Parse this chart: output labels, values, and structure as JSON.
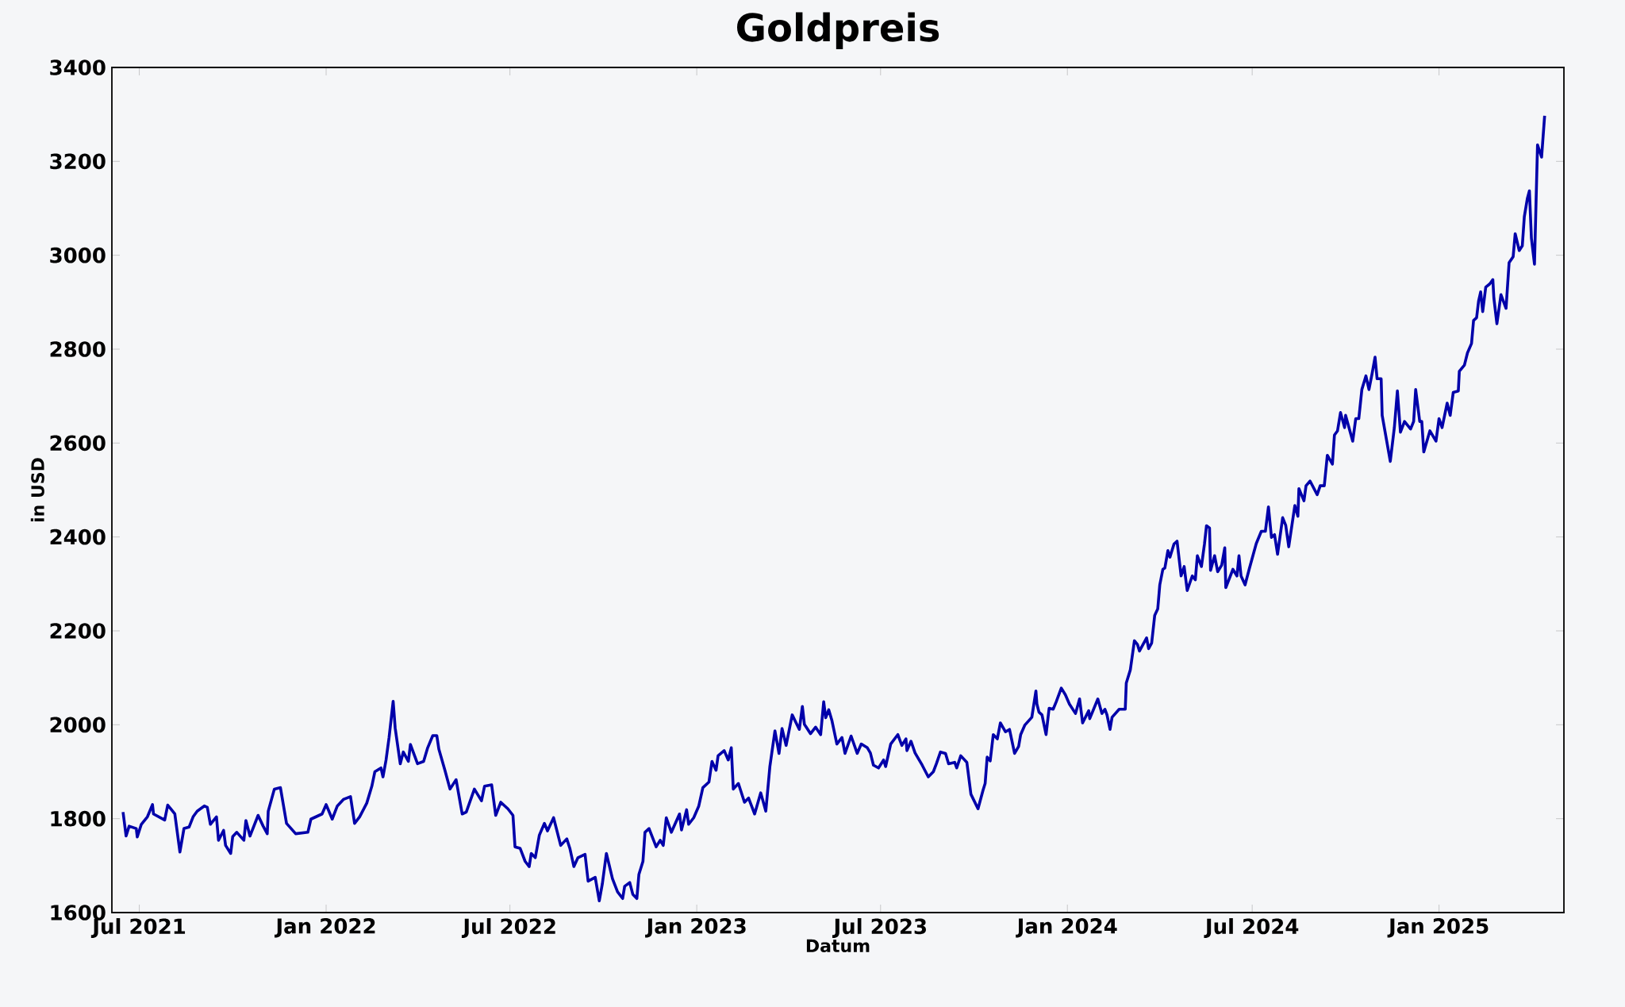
{
  "chart_data": {
    "type": "line",
    "title": "Goldpreis",
    "xlabel": "Datum",
    "ylabel": "in USD",
    "xlim": [
      "2021-06-04",
      "2025-05-04"
    ],
    "ylim": [
      1600,
      3400
    ],
    "xticks": [
      {
        "value": "2021-07-01",
        "label": "Jul 2021"
      },
      {
        "value": "2022-01-01",
        "label": "Jan 2022"
      },
      {
        "value": "2022-07-01",
        "label": "Jul 2022"
      },
      {
        "value": "2023-01-01",
        "label": "Jan 2023"
      },
      {
        "value": "2023-07-01",
        "label": "Jul 2023"
      },
      {
        "value": "2024-01-01",
        "label": "Jan 2024"
      },
      {
        "value": "2024-07-01",
        "label": "Jul 2024"
      },
      {
        "value": "2025-01-01",
        "label": "Jan 2025"
      }
    ],
    "yticks": [
      1600,
      1800,
      2000,
      2200,
      2400,
      2600,
      2800,
      3000,
      3200,
      3400
    ],
    "line_style": "solid",
    "series": [
      {
        "color": "#0000aa",
        "x": [
          "2021-06-15",
          "2021-06-18",
          "2021-06-21",
          "2021-06-28",
          "2021-06-29",
          "2021-07-03",
          "2021-07-09",
          "2021-07-14",
          "2021-07-15",
          "2021-07-26",
          "2021-07-29",
          "2021-08-05",
          "2021-08-10",
          "2021-08-14",
          "2021-08-19",
          "2021-08-23",
          "2021-08-27",
          "2021-09-03",
          "2021-09-06",
          "2021-09-09",
          "2021-09-15",
          "2021-09-17",
          "2021-09-22",
          "2021-09-24",
          "2021-09-29",
          "2021-10-01",
          "2021-10-05",
          "2021-10-12",
          "2021-10-14",
          "2021-10-18",
          "2021-10-26",
          "2021-10-31",
          "2021-11-04",
          "2021-11-05",
          "2021-11-11",
          "2021-11-17",
          "2021-11-23",
          "2021-12-02",
          "2021-12-14",
          "2021-12-17",
          "2021-12-28",
          "2022-01-01",
          "2022-01-07",
          "2022-01-12",
          "2022-01-18",
          "2022-01-25",
          "2022-01-29",
          "2022-02-03",
          "2022-02-10",
          "2022-02-15",
          "2022-02-18",
          "2022-02-24",
          "2022-02-26",
          "2022-03-01",
          "2022-03-04",
          "2022-03-08",
          "2022-03-10",
          "2022-03-15",
          "2022-03-18",
          "2022-03-23",
          "2022-03-25",
          "2022-04-01",
          "2022-04-07",
          "2022-04-11",
          "2022-04-16",
          "2022-04-20",
          "2022-04-22",
          "2022-04-28",
          "2022-05-03",
          "2022-05-09",
          "2022-05-15",
          "2022-05-19",
          "2022-05-27",
          "2022-06-03",
          "2022-06-06",
          "2022-06-13",
          "2022-06-17",
          "2022-06-22",
          "2022-06-29",
          "2022-07-04",
          "2022-07-06",
          "2022-07-11",
          "2022-07-16",
          "2022-07-20",
          "2022-07-22",
          "2022-07-26",
          "2022-07-30",
          "2022-08-04",
          "2022-08-07",
          "2022-08-13",
          "2022-08-20",
          "2022-08-26",
          "2022-08-29",
          "2022-09-02",
          "2022-09-06",
          "2022-09-13",
          "2022-09-16",
          "2022-09-23",
          "2022-09-27",
          "2022-09-30",
          "2022-10-04",
          "2022-10-10",
          "2022-10-15",
          "2022-10-20",
          "2022-10-22",
          "2022-10-27",
          "2022-10-30",
          "2022-11-03",
          "2022-11-05",
          "2022-11-09",
          "2022-11-11",
          "2022-11-15",
          "2022-11-22",
          "2022-11-26",
          "2022-11-29",
          "2022-12-02",
          "2022-12-07",
          "2022-12-15",
          "2022-12-17",
          "2022-12-22",
          "2022-12-24",
          "2022-12-29",
          "2023-01-03",
          "2023-01-07",
          "2023-01-13",
          "2023-01-16",
          "2023-01-20",
          "2023-01-22",
          "2023-01-28",
          "2023-02-01",
          "2023-02-04",
          "2023-02-06",
          "2023-02-11",
          "2023-02-17",
          "2023-02-21",
          "2023-02-27",
          "2023-03-05",
          "2023-03-10",
          "2023-03-14",
          "2023-03-19",
          "2023-03-23",
          "2023-03-26",
          "2023-03-30",
          "2023-04-05",
          "2023-04-12",
          "2023-04-15",
          "2023-04-17",
          "2023-04-23",
          "2023-04-28",
          "2023-05-03",
          "2023-05-06",
          "2023-05-08",
          "2023-05-11",
          "2023-05-14",
          "2023-05-19",
          "2023-05-24",
          "2023-05-27",
          "2023-06-02",
          "2023-06-08",
          "2023-06-12",
          "2023-06-18",
          "2023-06-21",
          "2023-06-24",
          "2023-06-29",
          "2023-07-04",
          "2023-07-06",
          "2023-07-11",
          "2023-07-18",
          "2023-07-22",
          "2023-07-26",
          "2023-07-27",
          "2023-07-31",
          "2023-08-04",
          "2023-08-11",
          "2023-08-17",
          "2023-08-22",
          "2023-08-25",
          "2023-08-29",
          "2023-09-03",
          "2023-09-06",
          "2023-09-12",
          "2023-09-14",
          "2023-09-18",
          "2023-09-24",
          "2023-09-28",
          "2023-10-05",
          "2023-10-10",
          "2023-10-12",
          "2023-10-14",
          "2023-10-17",
          "2023-10-20",
          "2023-10-24",
          "2023-10-27",
          "2023-11-01",
          "2023-11-05",
          "2023-11-10",
          "2023-11-14",
          "2023-11-16",
          "2023-11-20",
          "2023-11-27",
          "2023-12-01",
          "2023-12-02",
          "2023-12-04",
          "2023-12-07",
          "2023-12-11",
          "2023-12-14",
          "2023-12-18",
          "2023-12-21",
          "2023-12-26",
          "2023-12-30",
          "2024-01-03",
          "2024-01-09",
          "2024-01-13",
          "2024-01-16",
          "2024-01-22",
          "2024-01-23",
          "2024-01-31",
          "2024-02-04",
          "2024-02-07",
          "2024-02-09",
          "2024-02-12",
          "2024-02-14",
          "2024-02-21",
          "2024-02-27",
          "2024-02-28",
          "2024-03-03",
          "2024-03-07",
          "2024-03-10",
          "2024-03-12",
          "2024-03-19",
          "2024-03-21",
          "2024-03-24",
          "2024-03-27",
          "2024-03-30",
          "2024-04-01",
          "2024-04-04",
          "2024-04-06",
          "2024-04-09",
          "2024-04-11",
          "2024-04-15",
          "2024-04-18",
          "2024-04-22",
          "2024-04-25",
          "2024-04-28",
          "2024-05-03",
          "2024-05-06",
          "2024-05-08",
          "2024-05-12",
          "2024-05-15",
          "2024-05-17",
          "2024-05-20",
          "2024-05-21",
          "2024-05-25",
          "2024-05-28",
          "2024-06-01",
          "2024-06-04",
          "2024-06-05",
          "2024-06-12",
          "2024-06-16",
          "2024-06-18",
          "2024-06-20",
          "2024-06-24",
          "2024-06-28",
          "2024-07-05",
          "2024-07-10",
          "2024-07-14",
          "2024-07-17",
          "2024-07-20",
          "2024-07-23",
          "2024-07-26",
          "2024-07-31",
          "2024-08-03",
          "2024-08-06",
          "2024-08-12",
          "2024-08-15",
          "2024-08-16",
          "2024-08-21",
          "2024-08-23",
          "2024-08-27",
          "2024-09-03",
          "2024-09-06",
          "2024-09-10",
          "2024-09-13",
          "2024-09-18",
          "2024-09-20",
          "2024-09-23",
          "2024-09-26",
          "2024-09-30",
          "2024-10-01",
          "2024-10-08",
          "2024-10-11",
          "2024-10-14",
          "2024-10-17",
          "2024-10-21",
          "2024-10-24",
          "2024-10-27",
          "2024-10-30",
          "2024-11-01",
          "2024-11-05",
          "2024-11-06",
          "2024-11-14",
          "2024-11-18",
          "2024-11-21",
          "2024-11-24",
          "2024-11-28",
          "2024-12-04",
          "2024-12-07",
          "2024-12-09",
          "2024-12-13",
          "2024-12-15",
          "2024-12-17",
          "2024-12-23",
          "2024-12-29",
          "2025-01-01",
          "2025-01-04",
          "2025-01-09",
          "2025-01-12",
          "2025-01-15",
          "2025-01-20",
          "2025-01-21",
          "2025-01-26",
          "2025-01-29",
          "2025-02-02",
          "2025-02-04",
          "2025-02-07",
          "2025-02-09",
          "2025-02-11",
          "2025-02-13",
          "2025-02-16",
          "2025-02-20",
          "2025-02-23",
          "2025-02-24",
          "2025-02-27",
          "2025-03-03",
          "2025-03-08",
          "2025-03-11",
          "2025-03-15",
          "2025-03-17",
          "2025-03-21",
          "2025-03-24",
          "2025-03-26",
          "2025-03-29",
          "2025-03-31",
          "2025-04-02",
          "2025-04-05",
          "2025-04-08",
          "2025-04-12",
          "2025-04-15"
        ],
        "values": [
          1814,
          1763,
          1784,
          1779,
          1761,
          1788,
          1804,
          1830,
          1810,
          1797,
          1829,
          1810,
          1729,
          1779,
          1782,
          1804,
          1816,
          1827,
          1824,
          1788,
          1804,
          1754,
          1775,
          1743,
          1726,
          1762,
          1771,
          1754,
          1796,
          1763,
          1807,
          1784,
          1768,
          1816,
          1863,
          1866,
          1790,
          1768,
          1771,
          1799,
          1810,
          1830,
          1799,
          1827,
          1841,
          1847,
          1790,
          1804,
          1833,
          1869,
          1900,
          1908,
          1889,
          1925,
          1973,
          2050,
          1993,
          1917,
          1942,
          1922,
          1958,
          1917,
          1922,
          1951,
          1977,
          1977,
          1948,
          1903,
          1863,
          1883,
          1810,
          1814,
          1863,
          1838,
          1869,
          1872,
          1807,
          1835,
          1821,
          1807,
          1740,
          1737,
          1709,
          1698,
          1726,
          1717,
          1765,
          1790,
          1774,
          1802,
          1743,
          1757,
          1737,
          1698,
          1717,
          1724,
          1667,
          1675,
          1625,
          1661,
          1726,
          1672,
          1644,
          1630,
          1656,
          1664,
          1639,
          1630,
          1681,
          1709,
          1771,
          1779,
          1740,
          1754,
          1743,
          1802,
          1771,
          1810,
          1776,
          1819,
          1788,
          1802,
          1827,
          1866,
          1878,
          1922,
          1903,
          1934,
          1945,
          1925,
          1951,
          1863,
          1875,
          1835,
          1844,
          1810,
          1855,
          1816,
          1911,
          1987,
          1939,
          1992,
          1956,
          2021,
          1990,
          2039,
          2001,
          1981,
          1995,
          1979,
          2049,
          2015,
          2032,
          2010,
          1959,
          1973,
          1939,
          1976,
          1939,
          1959,
          1951,
          1940,
          1914,
          1908,
          1925,
          1911,
          1959,
          1979,
          1956,
          1970,
          1945,
          1965,
          1940,
          1914,
          1889,
          1900,
          1917,
          1942,
          1939,
          1917,
          1920,
          1908,
          1934,
          1920,
          1852,
          1821,
          1861,
          1875,
          1931,
          1923,
          1979,
          1970,
          2004,
          1985,
          1990,
          1939,
          1954,
          1979,
          1999,
          2016,
          2072,
          2044,
          2027,
          2021,
          1979,
          2035,
          2033,
          2049,
          2078,
          2064,
          2044,
          2024,
          2055,
          2004,
          2030,
          2013,
          2055,
          2024,
          2033,
          2021,
          1990,
          2016,
          2033,
          2033,
          2089,
          2117,
          2179,
          2171,
          2157,
          2185,
          2162,
          2174,
          2233,
          2247,
          2298,
          2331,
          2334,
          2371,
          2357,
          2385,
          2391,
          2317,
          2337,
          2286,
          2317,
          2309,
          2360,
          2337,
          2385,
          2424,
          2419,
          2329,
          2360,
          2326,
          2340,
          2377,
          2292,
          2331,
          2317,
          2360,
          2317,
          2298,
          2331,
          2386,
          2412,
          2412,
          2464,
          2399,
          2405,
          2363,
          2441,
          2425,
          2379,
          2467,
          2444,
          2503,
          2477,
          2509,
          2519,
          2490,
          2509,
          2509,
          2574,
          2555,
          2617,
          2626,
          2665,
          2633,
          2659,
          2604,
          2652,
          2652,
          2714,
          2743,
          2714,
          2747,
          2783,
          2737,
          2737,
          2659,
          2561,
          2633,
          2711,
          2623,
          2646,
          2630,
          2646,
          2714,
          2646,
          2646,
          2581,
          2626,
          2604,
          2652,
          2633,
          2685,
          2659,
          2708,
          2711,
          2753,
          2766,
          2792,
          2812,
          2861,
          2867,
          2903,
          2922,
          2880,
          2932,
          2939,
          2948,
          2909,
          2854,
          2916,
          2887,
          2984,
          2997,
          3046,
          3010,
          3020,
          3082,
          3121,
          3137,
          3036,
          2981,
          3235,
          3209,
          3297
        ]
      }
    ]
  }
}
